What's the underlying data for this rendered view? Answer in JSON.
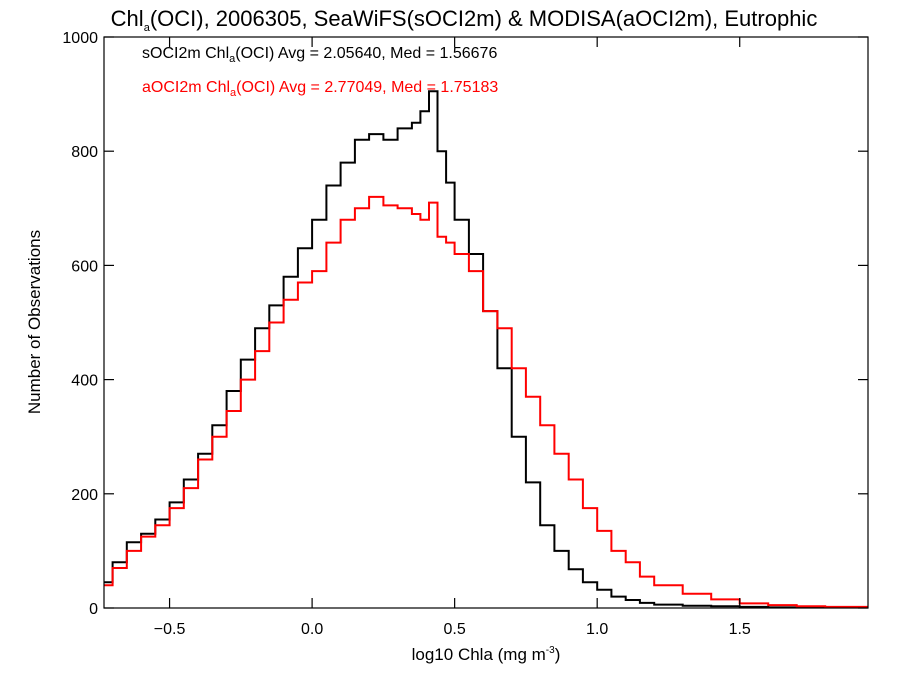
{
  "chart_data": {
    "type": "line",
    "title": {
      "pre": "Chl",
      "sub": "a",
      "post": "(OCI), 2006305, SeaWiFS(sOCI2m) & MODISA(aOCI2m), Eutrophic"
    },
    "xlabel": {
      "pre": "log10 Chla (mg m",
      "sup": "-3",
      "post": ")"
    },
    "ylabel": "Number of Observations",
    "xlim": [
      -0.73,
      1.95
    ],
    "ylim": [
      0,
      1000
    ],
    "xticks": [
      -0.5,
      0.0,
      0.5,
      1.0,
      1.5
    ],
    "xtick_labels": [
      "−0.5",
      "0.0",
      "0.5",
      "1.0",
      "1.5"
    ],
    "yticks": [
      0,
      200,
      400,
      600,
      800,
      1000
    ],
    "ytick_labels": [
      "0",
      "200",
      "400",
      "600",
      "800",
      "1000"
    ],
    "legend_placement": "top-left",
    "step": true,
    "series": [
      {
        "legend": {
          "pre": "sOCI2m Chl",
          "sub": "a",
          "post": "(OCI) Avg = 2.05640, Med = 1.56676"
        },
        "color": "#000000",
        "x": [
          -0.73,
          -0.7,
          -0.65,
          -0.6,
          -0.55,
          -0.5,
          -0.45,
          -0.4,
          -0.35,
          -0.3,
          -0.25,
          -0.2,
          -0.15,
          -0.1,
          -0.05,
          0.0,
          0.05,
          0.1,
          0.15,
          0.2,
          0.25,
          0.3,
          0.35,
          0.38,
          0.41,
          0.44,
          0.47,
          0.5,
          0.55,
          0.6,
          0.65,
          0.7,
          0.75,
          0.8,
          0.85,
          0.9,
          0.95,
          1.0,
          1.05,
          1.1,
          1.15,
          1.2,
          1.3,
          1.4,
          1.5,
          1.6,
          1.7,
          1.8,
          1.95
        ],
        "y": [
          45,
          80,
          115,
          130,
          155,
          185,
          225,
          270,
          320,
          380,
          435,
          490,
          530,
          580,
          630,
          680,
          740,
          780,
          820,
          830,
          820,
          840,
          850,
          870,
          905,
          800,
          745,
          680,
          620,
          520,
          420,
          300,
          220,
          145,
          100,
          68,
          45,
          32,
          20,
          14,
          9,
          6,
          4,
          3,
          2,
          1,
          1,
          0,
          0
        ]
      },
      {
        "legend": {
          "pre": "aOCI2m Chl",
          "sub": "a",
          "post": "(OCI) Avg = 2.77049, Med = 1.75183"
        },
        "color": "#ff0000",
        "x": [
          -0.73,
          -0.7,
          -0.65,
          -0.6,
          -0.55,
          -0.5,
          -0.45,
          -0.4,
          -0.35,
          -0.3,
          -0.25,
          -0.2,
          -0.15,
          -0.1,
          -0.05,
          0.0,
          0.05,
          0.1,
          0.15,
          0.2,
          0.25,
          0.3,
          0.35,
          0.38,
          0.41,
          0.44,
          0.47,
          0.5,
          0.55,
          0.6,
          0.65,
          0.7,
          0.75,
          0.8,
          0.85,
          0.9,
          0.95,
          1.0,
          1.05,
          1.1,
          1.15,
          1.2,
          1.3,
          1.4,
          1.5,
          1.6,
          1.7,
          1.8,
          1.95
        ],
        "y": [
          40,
          70,
          100,
          125,
          145,
          175,
          210,
          260,
          300,
          345,
          400,
          450,
          500,
          540,
          570,
          590,
          640,
          680,
          700,
          720,
          705,
          700,
          690,
          680,
          710,
          650,
          640,
          620,
          590,
          520,
          490,
          420,
          370,
          320,
          270,
          225,
          175,
          135,
          100,
          80,
          55,
          40,
          25,
          15,
          8,
          5,
          3,
          2,
          1
        ]
      }
    ]
  }
}
